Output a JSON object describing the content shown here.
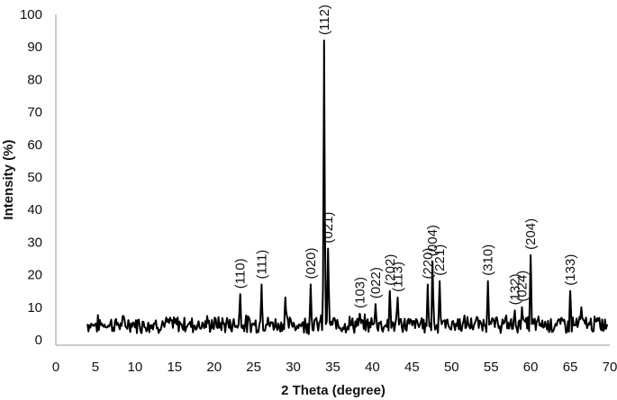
{
  "chart_data": {
    "type": "line",
    "title": "",
    "xlabel": "2 Theta (degree)",
    "ylabel": "Intensity (%)",
    "xlim": [
      0,
      70
    ],
    "ylim": [
      0,
      100
    ],
    "xticks": [
      0,
      5,
      10,
      15,
      20,
      25,
      30,
      35,
      40,
      45,
      50,
      55,
      60,
      65,
      70
    ],
    "yticks": [
      0,
      10,
      20,
      30,
      40,
      50,
      60,
      70,
      80,
      90,
      100
    ],
    "grid": false,
    "legend": "none",
    "line_color": "#000000",
    "baseline": {
      "x_start": 4.0,
      "x_end": 69.8,
      "mean": 4.6,
      "min": 1.0,
      "max": 8.8
    },
    "peaks": [
      {
        "x": 23.3,
        "y": 14,
        "label": "(110)"
      },
      {
        "x": 26.0,
        "y": 17,
        "label": "(111)"
      },
      {
        "x": 29.0,
        "y": 13,
        "label": ""
      },
      {
        "x": 32.2,
        "y": 17,
        "label": "(020)"
      },
      {
        "x": 33.9,
        "y": 92,
        "label": "(112)"
      },
      {
        "x": 34.4,
        "y": 28,
        "label": "(021)"
      },
      {
        "x": 38.4,
        "y": 8,
        "label": "(103)"
      },
      {
        "x": 40.4,
        "y": 11,
        "label": "(022)"
      },
      {
        "x": 42.2,
        "y": 15,
        "label": "(202)"
      },
      {
        "x": 43.2,
        "y": 13,
        "label": "(113)"
      },
      {
        "x": 47.0,
        "y": 17,
        "label": "(220)"
      },
      {
        "x": 47.6,
        "y": 24,
        "label": "(004)"
      },
      {
        "x": 48.5,
        "y": 18,
        "label": "(221)"
      },
      {
        "x": 54.6,
        "y": 18,
        "label": "(310)"
      },
      {
        "x": 58.0,
        "y": 9,
        "label": "(132)"
      },
      {
        "x": 58.9,
        "y": 10,
        "label": "(024)"
      },
      {
        "x": 60.0,
        "y": 26,
        "label": "(204)"
      },
      {
        "x": 65.0,
        "y": 15,
        "label": "(133)"
      },
      {
        "x": 66.4,
        "y": 10,
        "label": ""
      }
    ]
  }
}
